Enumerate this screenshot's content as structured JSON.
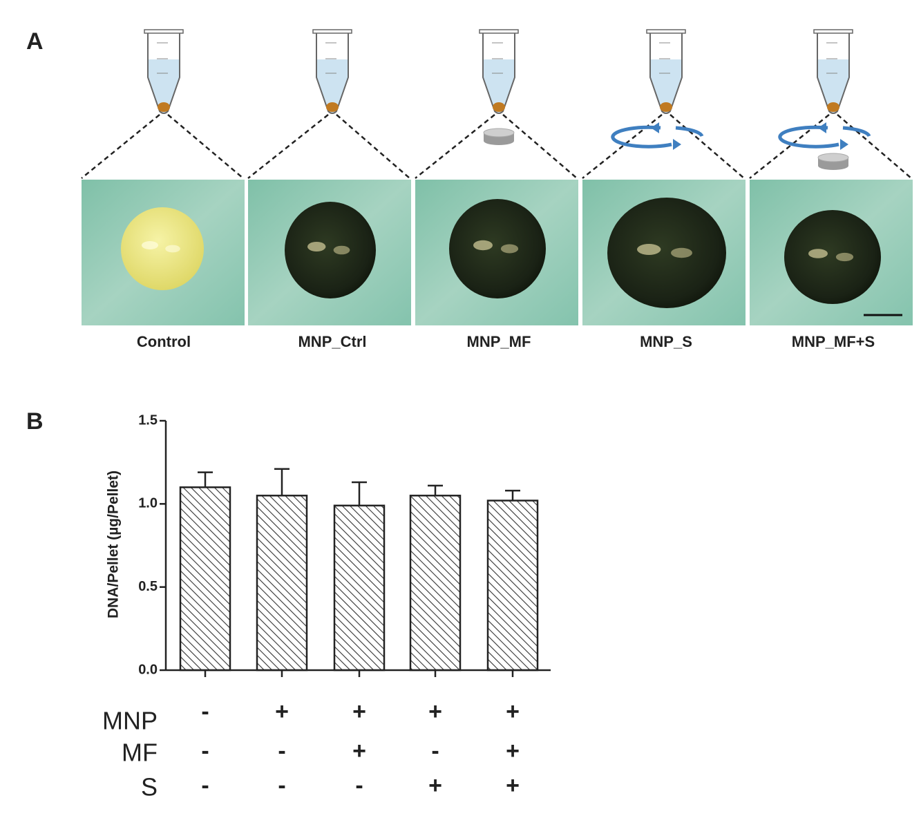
{
  "panel_a": {
    "label": "A",
    "conditions": [
      "Control",
      "MNP_Ctrl",
      "MNP_MF",
      "MNP_S",
      "MNP_MF+S"
    ]
  },
  "chart_data": {
    "type": "bar",
    "panel_label": "B",
    "y_label": "DNA/Pellet (µg/Pellet)",
    "categories": [
      null,
      null,
      null,
      null,
      null
    ],
    "values": [
      1.1,
      1.05,
      0.99,
      1.05,
      1.02
    ],
    "errors": [
      0.09,
      0.16,
      0.14,
      0.06,
      0.06
    ],
    "ylim": [
      0,
      1.5
    ],
    "yticks": [
      {
        "value": 0,
        "label": "0.0"
      },
      0.5,
      {
        "value": 1,
        "label": "1.0"
      },
      1.5
    ],
    "factors": [
      {
        "name": "MNP",
        "levels": [
          "-",
          "+",
          "+",
          "+",
          "+"
        ]
      },
      {
        "name": "MF",
        "levels": [
          "-",
          "-",
          "+",
          "-",
          "+"
        ]
      },
      {
        "name": "S",
        "levels": [
          "-",
          "-",
          "-",
          "+",
          "+"
        ]
      }
    ]
  }
}
